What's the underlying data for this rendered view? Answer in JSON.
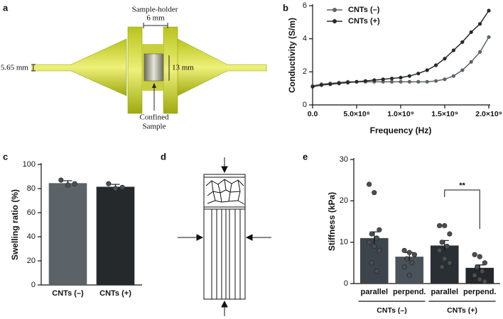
{
  "panel_labels": [
    "a",
    "b",
    "c",
    "d",
    "e"
  ],
  "diagram_a": {
    "holder_label": "Sample-holder",
    "holder_width": "6 mm",
    "tube_diameter": "5.65 mm",
    "sample_diameter": "13 mm",
    "sample_label": [
      "Confined",
      "Sample"
    ]
  },
  "chart_data": [
    {
      "type": "line",
      "xlabel": "Frequency (Hz)",
      "ylabel": "Conductivity (S/m)",
      "x": [
        0,
        100000000,
        200000000,
        300000000,
        400000000,
        500000000,
        600000000,
        700000000,
        800000000,
        900000000,
        1000000000,
        1100000000,
        1200000000,
        1300000000,
        1400000000,
        1500000000,
        1600000000,
        1700000000,
        1800000000,
        1900000000,
        2000000000
      ],
      "series": [
        {
          "name": "CNTs (–)",
          "color": "#5b6369",
          "values": [
            1.15,
            1.25,
            1.3,
            1.35,
            1.4,
            1.4,
            1.4,
            1.4,
            1.4,
            1.4,
            1.4,
            1.4,
            1.4,
            1.4,
            1.45,
            1.55,
            1.75,
            2.1,
            2.6,
            3.2,
            4.1
          ]
        },
        {
          "name": "CNTs (+)",
          "color": "#26292c",
          "values": [
            1.1,
            1.2,
            1.25,
            1.3,
            1.35,
            1.4,
            1.45,
            1.5,
            1.55,
            1.6,
            1.65,
            1.75,
            1.9,
            2.1,
            2.4,
            2.8,
            3.3,
            3.8,
            4.4,
            4.9,
            5.7
          ]
        }
      ],
      "xlim": [
        0,
        2000000000
      ],
      "xticks": [
        {
          "value": 0,
          "label": "0.0"
        },
        {
          "value": 500000000,
          "label": "5.0×10⁸"
        },
        {
          "value": 1000000000,
          "label": "1.0×10⁹"
        },
        {
          "value": 1500000000,
          "label": "1.5×10⁹"
        },
        {
          "value": 2000000000,
          "label": "2.0×10⁹"
        }
      ],
      "ylim": [
        0,
        6
      ],
      "yticks": [
        0,
        2,
        4,
        6
      ],
      "grid": false,
      "legend": "top-left"
    },
    {
      "type": "bar",
      "ylabel": "Swelling ratio (%)",
      "categories": [
        "CNTs (–)",
        "CNTs (+)"
      ],
      "values": [
        84.5,
        81.5
      ],
      "errors": [
        2,
        2
      ],
      "colors": [
        "#5b6369",
        "#26292c"
      ],
      "points": [
        [
          87,
          83,
          84
        ],
        [
          84,
          80,
          81
        ]
      ],
      "ylim": [
        0,
        100
      ],
      "yticks": [
        0,
        20,
        40,
        60,
        80,
        100
      ],
      "grid": false
    },
    {
      "type": "bar",
      "ylabel": "Stiffness (kPa)",
      "categories": [
        "parallel",
        "perpend.",
        "parallel",
        "perpend."
      ],
      "group_labels": [
        "CNTs (–)",
        "CNTs (+)"
      ],
      "values": [
        11,
        6.5,
        9.2,
        3.8
      ],
      "errors": [
        1.5,
        1,
        1.2,
        0.7
      ],
      "colors": [
        "#3d454c",
        "#4a535a",
        "#2a2f34",
        "#24282c"
      ],
      "points": [
        [
          24,
          22,
          13,
          12,
          11,
          10,
          9,
          8,
          5,
          3
        ],
        [
          8,
          7.5,
          7,
          6,
          5,
          4,
          2
        ],
        [
          14,
          14,
          12,
          10,
          9,
          8,
          6,
          5,
          4
        ],
        [
          7,
          6.5,
          5,
          4,
          3,
          2,
          1,
          0.5
        ]
      ],
      "annotations": [
        {
          "text": "**"
        }
      ],
      "ylim": [
        0,
        30
      ],
      "yticks": [
        0,
        10,
        20,
        30
      ],
      "grid": false
    }
  ]
}
